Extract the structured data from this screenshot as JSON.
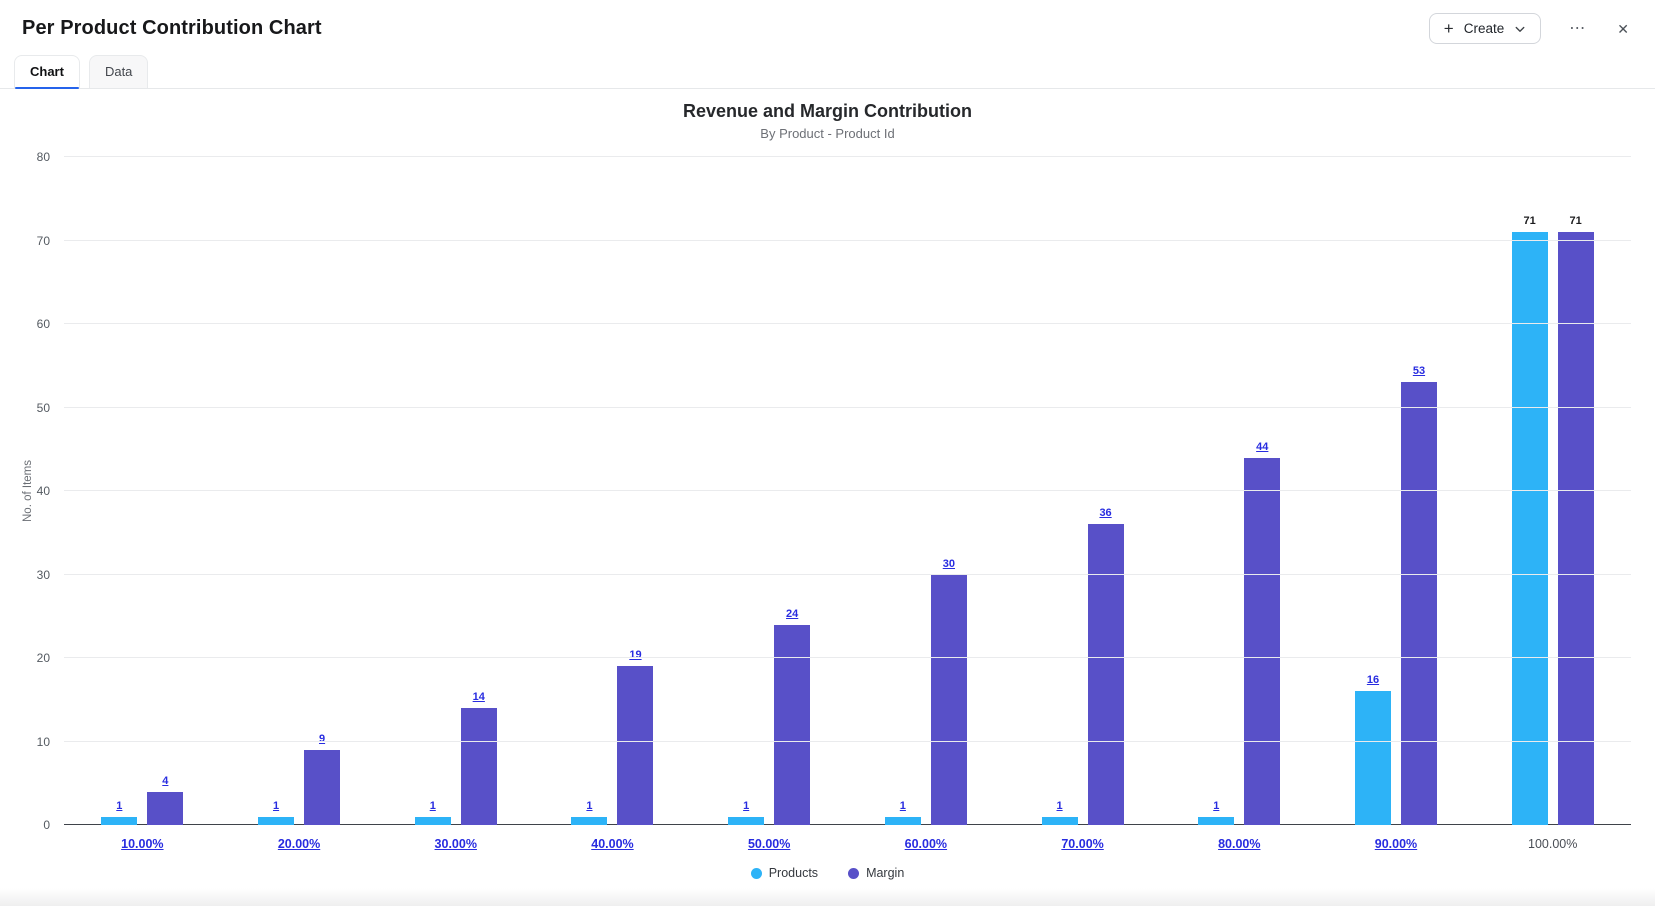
{
  "header": {
    "title": "Per Product Contribution Chart",
    "create_button": {
      "label": "Create"
    },
    "icons": {
      "plus": "+",
      "ellipsis": "⋯",
      "close": "✕"
    }
  },
  "tabs": [
    {
      "label": "Chart",
      "active": true
    },
    {
      "label": "Data",
      "active": false
    }
  ],
  "chart_data": {
    "type": "bar",
    "title": "Revenue and Margin Contribution",
    "subtitle": "By Product - Product Id",
    "xlabel": "",
    "ylabel": "No. of Items",
    "ylim": [
      0,
      80
    ],
    "ytick_step": 10,
    "grid": true,
    "legend_position": "bottom",
    "categories": [
      "10.00%",
      "20.00%",
      "30.00%",
      "40.00%",
      "50.00%",
      "60.00%",
      "70.00%",
      "80.00%",
      "90.00%",
      "100.00%"
    ],
    "category_is_link": [
      true,
      true,
      true,
      true,
      true,
      true,
      true,
      true,
      true,
      false
    ],
    "series": [
      {
        "name": "Products",
        "color": "#2db3f7",
        "values": [
          1,
          1,
          1,
          1,
          1,
          1,
          1,
          1,
          16,
          71
        ]
      },
      {
        "name": "Margin",
        "color": "#5850c8",
        "values": [
          4,
          9,
          14,
          19,
          24,
          30,
          36,
          44,
          53,
          71
        ]
      }
    ]
  },
  "colors": {
    "link": "#282ce0",
    "gridline": "#eaebed",
    "baseline": "#3f434a",
    "tab_active_underline": "#2563eb"
  }
}
